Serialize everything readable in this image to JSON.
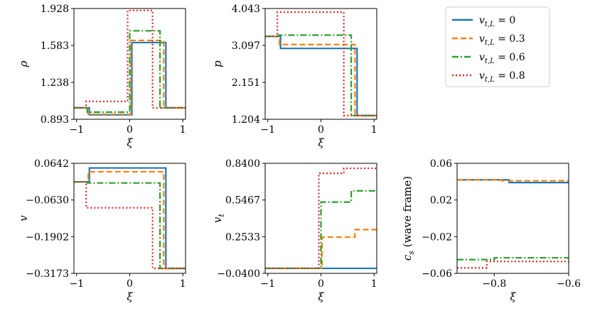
{
  "colors": {
    "blue": "#1f77b4",
    "orange": "#ff7f0e",
    "green": "#2ca02c",
    "red": "#d62728"
  },
  "legend": {
    "location": "top-right",
    "entries": [
      {
        "label": "v_{t,L} = 0",
        "text": "vt,L = 0",
        "color": "#1f77b4",
        "dash": "solid"
      },
      {
        "label": "v_{t,L} = 0.3",
        "text": "vt,L = 0.3",
        "color": "#ff7f0e",
        "dash": "dashed"
      },
      {
        "label": "v_{t,L} = 0.6",
        "text": "vt,L = 0.6",
        "color": "#2ca02c",
        "dash": "dashdot"
      },
      {
        "label": "v_{t,L} = 0.8",
        "text": "vt,L = 0.8",
        "color": "#d62728",
        "dash": "dotted"
      }
    ]
  },
  "chart_data": [
    {
      "id": "rho",
      "type": "line",
      "xlabel": "ξ",
      "ylabel": "ρ",
      "xlim": [
        -1.05,
        1.05
      ],
      "ylim": [
        0.893,
        1.928
      ],
      "xticks": [
        -1,
        0,
        1
      ],
      "xticklabels": [
        "−1",
        "0",
        "1"
      ],
      "yticks": [
        0.893,
        1.238,
        1.583,
        1.928
      ],
      "yticklabels": [
        "0.893",
        "1.238",
        "1.583",
        "1.928"
      ],
      "series": [
        {
          "name": "v_{t,L} = 0",
          "x": [
            -1.05,
            -0.76,
            -0.76,
            0.04,
            0.04,
            0.68,
            0.68,
            1.05
          ],
          "y": [
            1.0,
            1.0,
            0.935,
            0.935,
            1.61,
            1.61,
            1.0,
            1.0
          ]
        },
        {
          "name": "v_{t,L} = 0.3",
          "x": [
            -1.05,
            -0.78,
            -0.78,
            0.02,
            0.02,
            0.64,
            0.64,
            1.05
          ],
          "y": [
            1.0,
            1.0,
            0.94,
            0.94,
            1.63,
            1.63,
            1.0,
            1.0
          ]
        },
        {
          "name": "v_{t,L} = 0.6",
          "x": [
            -1.05,
            -0.8,
            -0.8,
            0.0,
            0.0,
            0.57,
            0.57,
            1.05
          ],
          "y": [
            1.0,
            1.0,
            0.96,
            0.96,
            1.72,
            1.72,
            1.0,
            1.0
          ]
        },
        {
          "name": "v_{t,L} = 0.8",
          "x": [
            -1.05,
            -0.82,
            -0.82,
            -0.04,
            -0.04,
            0.43,
            0.43,
            1.05
          ],
          "y": [
            1.0,
            1.0,
            1.06,
            1.06,
            1.91,
            1.91,
            1.0,
            1.0
          ]
        }
      ]
    },
    {
      "id": "p",
      "type": "line",
      "xlabel": "ξ",
      "ylabel": "p",
      "xlim": [
        -1.05,
        1.05
      ],
      "ylim": [
        1.204,
        4.043
      ],
      "xticks": [
        -1,
        0,
        1
      ],
      "xticklabels": [
        "−1",
        "0",
        "1"
      ],
      "yticks": [
        1.204,
        2.151,
        3.097,
        4.043
      ],
      "yticklabels": [
        "1.204",
        "2.151",
        "3.097",
        "4.043"
      ],
      "series": [
        {
          "name": "v_{t,L} = 0",
          "x": [
            -1.05,
            -0.76,
            -0.76,
            0.68,
            0.68,
            1.05
          ],
          "y": [
            3.33,
            3.33,
            3.02,
            3.02,
            1.3,
            1.3
          ]
        },
        {
          "name": "v_{t,L} = 0.3",
          "x": [
            -1.05,
            -0.78,
            -0.78,
            0.64,
            0.64,
            1.05
          ],
          "y": [
            3.33,
            3.33,
            3.12,
            3.12,
            1.3,
            1.3
          ]
        },
        {
          "name": "v_{t,L} = 0.6",
          "x": [
            -1.05,
            -0.8,
            -0.8,
            0.57,
            0.57,
            1.05
          ],
          "y": [
            3.33,
            3.33,
            3.36,
            3.36,
            1.3,
            1.3
          ]
        },
        {
          "name": "v_{t,L} = 0.8",
          "x": [
            -1.05,
            -0.82,
            -0.82,
            0.43,
            0.43,
            1.05
          ],
          "y": [
            3.33,
            3.33,
            3.95,
            3.95,
            1.3,
            1.3
          ]
        }
      ]
    },
    {
      "id": "v",
      "type": "line",
      "xlabel": "ξ",
      "ylabel": "v",
      "xlim": [
        -1.05,
        1.05
      ],
      "ylim": [
        -0.3173,
        0.0642
      ],
      "xticks": [
        -1,
        0,
        1
      ],
      "xticklabels": [
        "−1",
        "0",
        "1"
      ],
      "yticks": [
        -0.3173,
        -0.1902,
        -0.063,
        0.0642
      ],
      "yticklabels": [
        "−0.3173",
        "−0.1902",
        "−0.0630",
        "0.0642"
      ],
      "series": [
        {
          "name": "v_{t,L} = 0",
          "x": [
            -1.05,
            -0.76,
            -0.76,
            0.68,
            0.68,
            1.05
          ],
          "y": [
            0.0,
            0.0,
            0.048,
            0.048,
            -0.3,
            -0.3
          ]
        },
        {
          "name": "v_{t,L} = 0.3",
          "x": [
            -1.05,
            -0.78,
            -0.78,
            0.64,
            0.64,
            1.05
          ],
          "y": [
            0.0,
            0.0,
            0.035,
            0.035,
            -0.3,
            -0.3
          ]
        },
        {
          "name": "v_{t,L} = 0.6",
          "x": [
            -1.05,
            -0.8,
            -0.8,
            0.57,
            0.57,
            1.05
          ],
          "y": [
            0.0,
            0.0,
            -0.004,
            -0.004,
            -0.3,
            -0.3
          ]
        },
        {
          "name": "v_{t,L} = 0.8",
          "x": [
            -1.05,
            -0.82,
            -0.82,
            -0.04,
            -0.04,
            0.43,
            0.43,
            1.05
          ],
          "y": [
            0.0,
            0.0,
            -0.09,
            -0.09,
            -0.09,
            -0.09,
            -0.3,
            -0.3
          ]
        }
      ]
    },
    {
      "id": "vt",
      "type": "line",
      "xlabel": "ξ",
      "ylabel": "v_t",
      "xlim": [
        -1.05,
        1.05
      ],
      "ylim": [
        -0.04,
        0.84
      ],
      "xticks": [
        -1,
        0,
        1
      ],
      "xticklabels": [
        "−1",
        "0",
        "1"
      ],
      "yticks": [
        -0.04,
        0.2533,
        0.5467,
        0.84
      ],
      "yticklabels": [
        "−0.0400",
        "0.2533",
        "0.5467",
        "0.8400"
      ],
      "series": [
        {
          "name": "v_{t,L} = 0",
          "x": [
            -1.05,
            1.05
          ],
          "y": [
            0.0,
            0.0
          ]
        },
        {
          "name": "v_{t,L} = 0.3",
          "x": [
            -1.05,
            0.02,
            0.02,
            0.64,
            0.64,
            1.05
          ],
          "y": [
            0.0,
            0.0,
            0.25,
            0.25,
            0.31,
            0.31
          ]
        },
        {
          "name": "v_{t,L} = 0.6",
          "x": [
            -1.05,
            0.0,
            0.0,
            0.57,
            0.57,
            1.05
          ],
          "y": [
            0.0,
            0.0,
            0.53,
            0.53,
            0.62,
            0.62
          ]
        },
        {
          "name": "v_{t,L} = 0.8",
          "x": [
            -1.05,
            -0.04,
            -0.04,
            0.43,
            0.43,
            1.05
          ],
          "y": [
            0.0,
            0.0,
            0.76,
            0.76,
            0.8,
            0.8
          ]
        }
      ]
    },
    {
      "id": "cs",
      "type": "line",
      "xlabel": "ξ",
      "ylabel": "c_s (wave frame)",
      "xlim": [
        -0.9,
        -0.6
      ],
      "ylim": [
        -0.06,
        0.06
      ],
      "xticks": [
        -0.8,
        -0.6
      ],
      "xticklabels": [
        "−0.8",
        "−0.6"
      ],
      "yticks": [
        -0.06,
        -0.02,
        0.02,
        0.06
      ],
      "yticklabels": [
        "−0.06",
        "−0.02",
        "0.02",
        "0.06"
      ],
      "series": [
        {
          "name": "v_{t,L} = 0",
          "x": [
            -0.9,
            -0.76,
            -0.76,
            -0.6
          ],
          "y": [
            0.042,
            0.042,
            0.039,
            0.039
          ]
        },
        {
          "name": "v_{t,L} = 0.3",
          "x": [
            -0.9,
            -0.78,
            -0.78,
            -0.6
          ],
          "y": [
            0.042,
            0.042,
            0.041,
            0.041
          ]
        },
        {
          "name": "v_{t,L} = 0.6",
          "x": [
            -0.9,
            -0.8,
            -0.8,
            -0.6
          ],
          "y": [
            -0.045,
            -0.045,
            -0.043,
            -0.043
          ]
        },
        {
          "name": "v_{t,L} = 0.8",
          "x": [
            -0.9,
            -0.82,
            -0.82,
            -0.6
          ],
          "y": [
            -0.054,
            -0.054,
            -0.047,
            -0.047
          ]
        }
      ]
    }
  ]
}
